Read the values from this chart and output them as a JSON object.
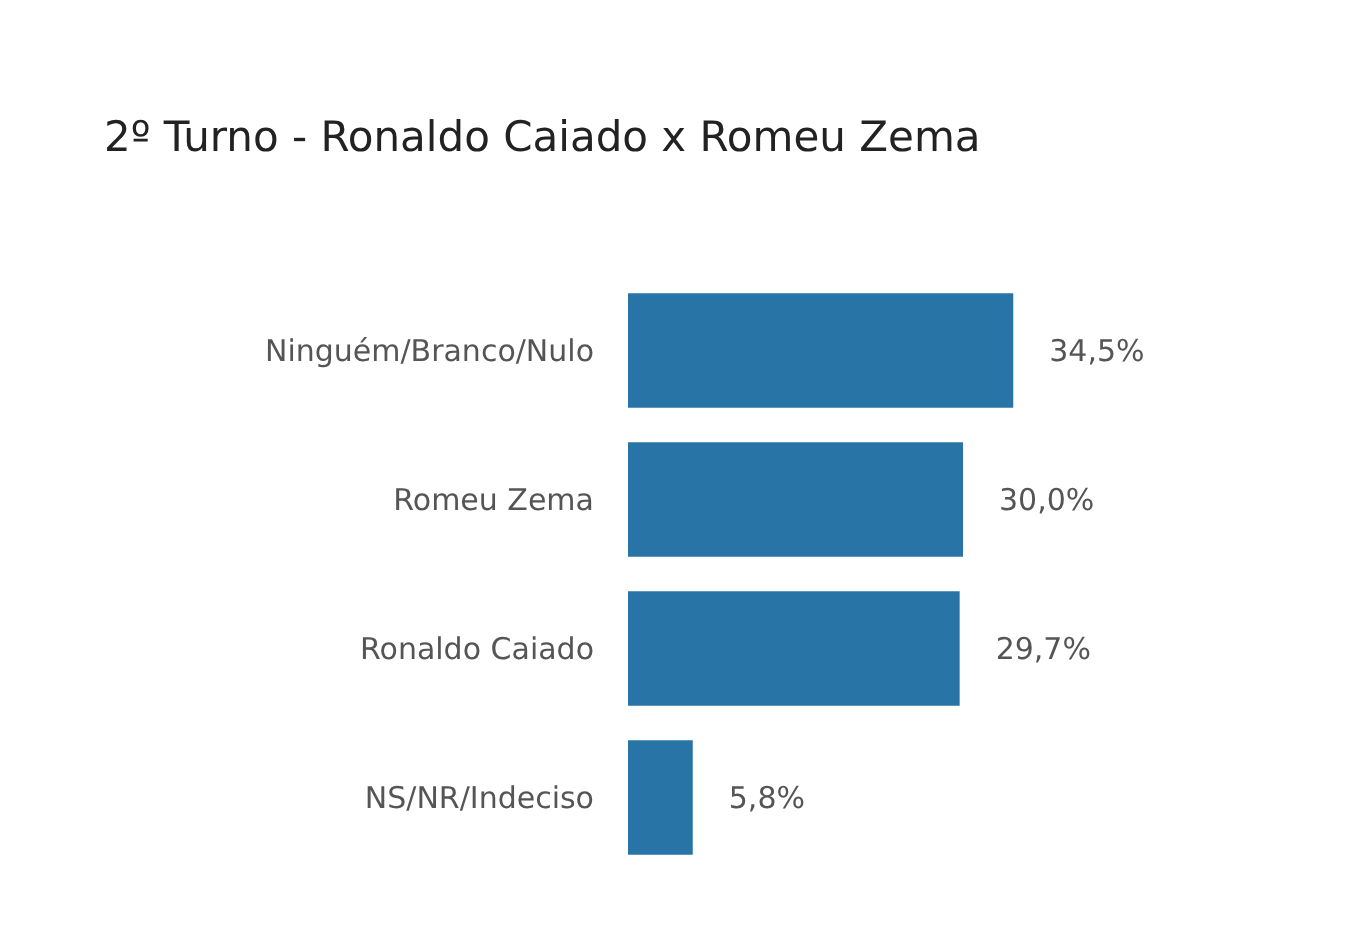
{
  "chart_data": {
    "type": "bar",
    "orientation": "horizontal",
    "title": "2º Turno - Ronaldo Caiado x Romeu Zema",
    "categories": [
      "Ninguém/Branco/Nulo",
      "Romeu Zema",
      "Ronaldo Caiado",
      "NS/NR/Indeciso"
    ],
    "values": [
      34.5,
      30.0,
      29.7,
      5.8
    ],
    "value_labels": [
      "34,5%",
      "30,0%",
      "29,7%",
      "5,8%"
    ],
    "color": "#2874a6"
  }
}
